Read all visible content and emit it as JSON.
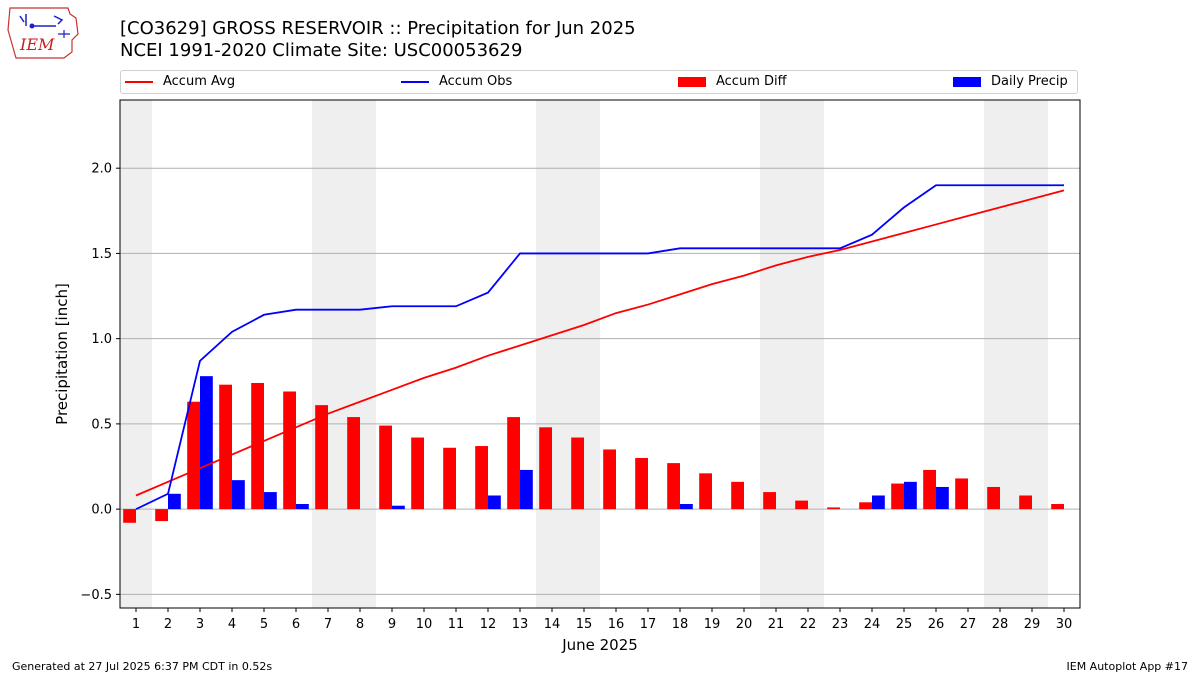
{
  "logo": {
    "text": "IEM"
  },
  "header": {
    "title_line1": "[CO3629] GROSS RESERVOIR :: Precipitation for Jun 2025",
    "title_line2": "NCEI 1991-2020 Climate Site: USC00053629"
  },
  "legend": {
    "placement": "top",
    "items": [
      {
        "label": "Accum Avg",
        "kind": "line",
        "color": "#ff0000"
      },
      {
        "label": "Accum Obs",
        "kind": "line",
        "color": "#0000ff"
      },
      {
        "label": "Accum Diff",
        "kind": "bar",
        "color": "#ff0000"
      },
      {
        "label": "Daily Precip",
        "kind": "bar",
        "color": "#0000ff"
      }
    ]
  },
  "chart_data": {
    "type": "bar",
    "xlabel": "June 2025",
    "ylabel": "Precipitation [inch]",
    "ylim": [
      -0.58,
      2.4
    ],
    "yticks": [
      -0.5,
      0.0,
      0.5,
      1.0,
      1.5,
      2.0
    ],
    "grid": "horizontal",
    "weekend_shading": [
      [
        1
      ],
      [
        7,
        8
      ],
      [
        14,
        15
      ],
      [
        21,
        22
      ],
      [
        28,
        29
      ]
    ],
    "shade_color": "#efefef",
    "x": [
      1,
      2,
      3,
      4,
      5,
      6,
      7,
      8,
      9,
      10,
      11,
      12,
      13,
      14,
      15,
      16,
      17,
      18,
      19,
      20,
      21,
      22,
      23,
      24,
      25,
      26,
      27,
      28,
      29,
      30
    ],
    "series": [
      {
        "name": "Accum Avg",
        "kind": "line",
        "color": "#ff0000",
        "values": [
          0.08,
          0.16,
          0.24,
          0.32,
          0.4,
          0.48,
          0.56,
          0.63,
          0.7,
          0.77,
          0.83,
          0.9,
          0.96,
          1.02,
          1.08,
          1.15,
          1.2,
          1.26,
          1.32,
          1.37,
          1.43,
          1.48,
          1.52,
          1.57,
          1.62,
          1.67,
          1.72,
          1.77,
          1.82,
          1.87
        ]
      },
      {
        "name": "Accum Obs",
        "kind": "line",
        "color": "#0000ff",
        "values": [
          0.0,
          0.09,
          0.87,
          1.04,
          1.14,
          1.17,
          1.17,
          1.17,
          1.19,
          1.19,
          1.19,
          1.27,
          1.5,
          1.5,
          1.5,
          1.5,
          1.5,
          1.53,
          1.53,
          1.53,
          1.53,
          1.53,
          1.53,
          1.61,
          1.77,
          1.9,
          1.9,
          1.9,
          1.9,
          1.9
        ]
      },
      {
        "name": "Accum Diff",
        "kind": "bar",
        "color": "#ff0000",
        "values": [
          -0.08,
          -0.07,
          0.63,
          0.73,
          0.74,
          0.69,
          0.61,
          0.54,
          0.49,
          0.42,
          0.36,
          0.37,
          0.54,
          0.48,
          0.42,
          0.35,
          0.3,
          0.27,
          0.21,
          0.16,
          0.1,
          0.05,
          0.01,
          0.04,
          0.15,
          0.23,
          0.18,
          0.13,
          0.08,
          0.03
        ]
      },
      {
        "name": "Daily Precip",
        "kind": "bar",
        "color": "#0000ff",
        "values": [
          0.0,
          0.09,
          0.78,
          0.17,
          0.1,
          0.03,
          0.0,
          0.0,
          0.02,
          0.0,
          0.0,
          0.08,
          0.23,
          0.0,
          0.0,
          0.0,
          0.0,
          0.03,
          0.0,
          0.0,
          0.0,
          0.0,
          0.0,
          0.08,
          0.16,
          0.13,
          0.0,
          0.0,
          0.0,
          0.0
        ]
      }
    ]
  },
  "footer": {
    "generated": "Generated at 27 Jul 2025 6:37 PM CDT in 0.52s",
    "app": "IEM Autoplot App #17"
  }
}
